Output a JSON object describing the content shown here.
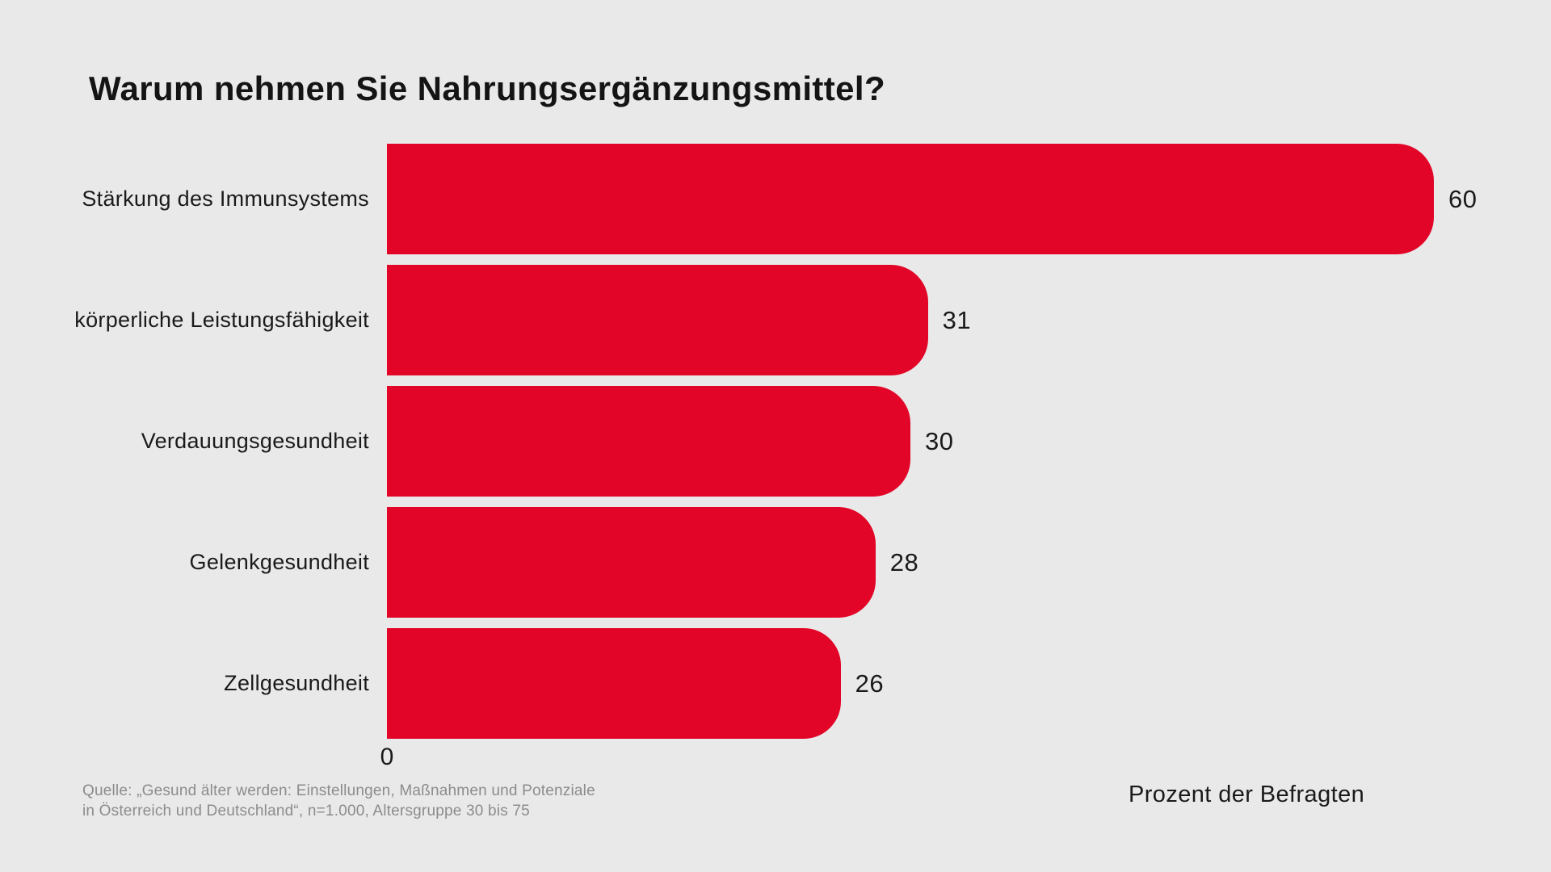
{
  "title": "Warum nehmen Sie Nahrungsergänzungsmittel?",
  "chart_data": {
    "type": "bar",
    "orientation": "horizontal",
    "title": "Warum nehmen Sie Nahrungsergänzungsmittel?",
    "categories": [
      "Stärkung des Immunsystems",
      "körperliche Leistungsfähigkeit",
      "Verdauungsgesundheit",
      "Gelenkgesundheit",
      "Zellgesundheit"
    ],
    "values": [
      60,
      31,
      30,
      28,
      26
    ],
    "xlabel": "Prozent der Befragten",
    "xlim": [
      0,
      60
    ],
    "x_ticks": [
      "0"
    ],
    "grid": false,
    "legend": false,
    "value_labels_shown": true,
    "bar_color": "#e20528"
  },
  "axis": {
    "zero_tick": "0",
    "x_label": "Prozent der Befragten"
  },
  "source": {
    "line1": "Quelle: „Gesund älter werden: Einstellungen, Maßnahmen und Potenziale",
    "line2": "in Österreich und Deutschland“, n=1.000, Altersgruppe 30 bis 75"
  },
  "colors": {
    "background": "#e9e9e9",
    "bar": "#e20528",
    "text": "#1a1a1a",
    "source_text": "#8c8c8c"
  }
}
